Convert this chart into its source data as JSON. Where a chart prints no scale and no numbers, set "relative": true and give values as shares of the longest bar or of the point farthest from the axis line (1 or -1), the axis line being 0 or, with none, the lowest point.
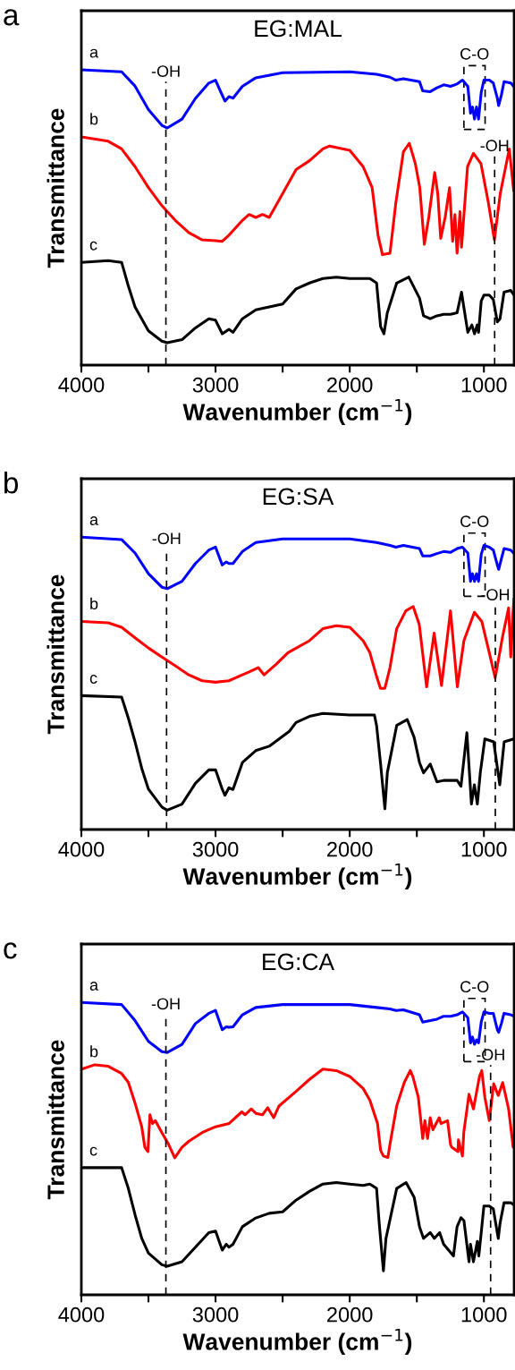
{
  "chart_data": [
    {
      "type": "line",
      "title": "EG:MAL",
      "xlabel": "Wavenumber (cm$^{−1}$)",
      "ylabel": "Transmittance",
      "relative": true,
      "tick_labels": "x",
      "legend": false,
      "grid": false,
      "xlim": [
        4000,
        775
      ],
      "xticks": [
        4000,
        {
          "value": 3500,
          "label": null
        },
        3000,
        {
          "value": 2500,
          "label": null
        },
        2000,
        {
          "value": 1500,
          "label": null
        },
        1000
      ],
      "annotations": [
        "a",
        "C-O"
      ],
      "ref_lines": [
        {
          "axis": "x",
          "value": 3370,
          "label": "-OH",
          "color": "#000000",
          "line_style": "dashed"
        },
        {
          "axis": "x",
          "value": 920,
          "label": "-OH",
          "color": "#000000",
          "line_style": "dashed"
        }
      ],
      "series": [
        {
          "name": "a",
          "color": "#0000ff",
          "x": [
            4000,
            3700,
            3600,
            3500,
            3400,
            3360,
            3250,
            3150,
            3050,
            3000,
            2960,
            2930,
            2900,
            2870,
            2800,
            2700,
            2500,
            2000,
            1800,
            1700,
            1656,
            1600,
            1480,
            1456,
            1400,
            1350,
            1300,
            1250,
            1200,
            1160,
            1120,
            1100,
            1085,
            1070,
            1055,
            1040,
            1020,
            1000,
            960,
            930,
            900,
            890,
            870,
            850,
            800,
            775
          ],
          "values": [
            1.0,
            0.993,
            0.945,
            0.865,
            0.812,
            0.803,
            0.833,
            0.903,
            0.955,
            0.965,
            0.924,
            0.894,
            0.909,
            0.904,
            0.944,
            0.973,
            0.99,
            0.993,
            0.985,
            0.975,
            0.965,
            0.97,
            0.96,
            0.929,
            0.926,
            0.939,
            0.949,
            0.944,
            0.952,
            0.965,
            0.944,
            0.853,
            0.874,
            0.833,
            0.874,
            0.833,
            0.924,
            0.965,
            0.965,
            0.955,
            0.904,
            0.879,
            0.914,
            0.96,
            0.955,
            0.942
          ]
        },
        {
          "name": "b",
          "color": "#ff0000",
          "x": [
            4000,
            3800,
            3700,
            3600,
            3500,
            3400,
            3300,
            3200,
            3100,
            3000,
            2950,
            2900,
            2800,
            2750,
            2700,
            2650,
            2600,
            2550,
            2400,
            2300,
            2200,
            2150,
            2000,
            1900,
            1833,
            1789,
            1756,
            1700,
            1656,
            1600,
            1556,
            1511,
            1478,
            1444,
            1411,
            1367,
            1344,
            1322,
            1289,
            1256,
            1233,
            1216,
            1200,
            1178,
            1167,
            1122,
            1078,
            1022,
            967,
            922,
            878,
            811,
            778
          ],
          "values": [
            0.773,
            0.758,
            0.732,
            0.672,
            0.601,
            0.54,
            0.49,
            0.449,
            0.424,
            0.421,
            0.419,
            0.44,
            0.49,
            0.51,
            0.5,
            0.51,
            0.5,
            0.54,
            0.662,
            0.692,
            0.732,
            0.742,
            0.727,
            0.672,
            0.601,
            0.439,
            0.374,
            0.379,
            0.551,
            0.722,
            0.751,
            0.682,
            0.601,
            0.409,
            0.5,
            0.652,
            0.581,
            0.429,
            0.5,
            0.601,
            0.419,
            0.51,
            0.379,
            0.52,
            0.399,
            0.672,
            0.717,
            0.682,
            0.551,
            0.424,
            0.581,
            0.732,
            0.591
          ]
        },
        {
          "name": "c",
          "color": "#000000",
          "x": [
            4000,
            3800,
            3700,
            3650,
            3600,
            3500,
            3400,
            3360,
            3250,
            3150,
            3050,
            3000,
            2950,
            2900,
            2870,
            2800,
            2700,
            2600,
            2500,
            2400,
            2300,
            2200,
            2100,
            2000,
            1850,
            1800,
            1770,
            1745,
            1720,
            1650,
            1560,
            1480,
            1450,
            1400,
            1350,
            1300,
            1250,
            1200,
            1167,
            1150,
            1120,
            1090,
            1070,
            1050,
            1040,
            1020,
            1000,
            960,
            930,
            900,
            880,
            850,
            800,
            775
          ],
          "values": [
            0.348,
            0.354,
            0.348,
            0.268,
            0.197,
            0.116,
            0.081,
            0.076,
            0.086,
            0.126,
            0.157,
            0.152,
            0.106,
            0.121,
            0.111,
            0.157,
            0.187,
            0.197,
            0.207,
            0.258,
            0.278,
            0.293,
            0.298,
            0.293,
            0.293,
            0.278,
            0.131,
            0.106,
            0.177,
            0.278,
            0.298,
            0.227,
            0.167,
            0.157,
            0.167,
            0.172,
            0.172,
            0.177,
            0.247,
            0.197,
            0.111,
            0.136,
            0.106,
            0.136,
            0.111,
            0.217,
            0.237,
            0.237,
            0.222,
            0.146,
            0.157,
            0.247,
            0.253,
            0.237
          ]
        }
      ]
    },
    {
      "type": "line",
      "title": "EG:SA",
      "xlabel": "Wavenumber (cm$^{−1}$)",
      "ylabel": "Transmittance",
      "relative": true,
      "tick_labels": "x",
      "legend": false,
      "grid": false,
      "xlim": [
        4000,
        775
      ],
      "xticks": [
        4000,
        {
          "value": 3500,
          "label": null
        },
        3000,
        {
          "value": 2500,
          "label": null
        },
        2000,
        {
          "value": 1500,
          "label": null
        },
        1000
      ],
      "annotations": [
        "b",
        "C-O"
      ],
      "ref_lines": [
        {
          "axis": "x",
          "value": 3365,
          "label": "-OH",
          "color": "#000000",
          "line_style": "dashed"
        },
        {
          "axis": "x",
          "value": 915,
          "label": "-OH",
          "color": "#000000",
          "line_style": "dashed"
        }
      ],
      "series": [
        {
          "name": "a",
          "color": "#0000ff",
          "x": [
            4000,
            3700,
            3600,
            3500,
            3400,
            3360,
            3250,
            3150,
            3050,
            3000,
            2950,
            2920,
            2900,
            2870,
            2800,
            2700,
            2500,
            2000,
            1800,
            1700,
            1656,
            1600,
            1480,
            1456,
            1400,
            1350,
            1300,
            1250,
            1200,
            1160,
            1120,
            1100,
            1085,
            1070,
            1055,
            1040,
            1020,
            1000,
            960,
            930,
            900,
            890,
            870,
            850,
            800,
            775
          ],
          "values": [
            1.0,
            0.992,
            0.946,
            0.875,
            0.829,
            0.824,
            0.849,
            0.91,
            0.956,
            0.966,
            0.905,
            0.915,
            0.91,
            0.91,
            0.951,
            0.982,
            0.994,
            0.994,
            0.982,
            0.972,
            0.966,
            0.972,
            0.961,
            0.936,
            0.936,
            0.944,
            0.951,
            0.948,
            0.961,
            0.966,
            0.946,
            0.849,
            0.875,
            0.849,
            0.875,
            0.849,
            0.941,
            0.972,
            0.966,
            0.956,
            0.905,
            0.89,
            0.926,
            0.961,
            0.956,
            0.944
          ]
        },
        {
          "name": "b",
          "color": "#ff0000",
          "x": [
            4000,
            3800,
            3700,
            3600,
            3500,
            3400,
            3300,
            3200,
            3100,
            3000,
            2900,
            2850,
            2750,
            2682,
            2638,
            2549,
            2460,
            2300,
            2200,
            2100,
            2000,
            1900,
            1850,
            1800,
            1771,
            1738,
            1700,
            1650,
            1582,
            1527,
            1482,
            1427,
            1371,
            1316,
            1249,
            1198,
            1149,
            1071,
            1016,
            960,
            916,
            860,
            816,
            800,
            785,
            776
          ],
          "values": [
            0.712,
            0.707,
            0.692,
            0.656,
            0.621,
            0.59,
            0.56,
            0.529,
            0.509,
            0.504,
            0.509,
            0.519,
            0.539,
            0.554,
            0.529,
            0.565,
            0.605,
            0.646,
            0.687,
            0.697,
            0.692,
            0.646,
            0.605,
            0.524,
            0.483,
            0.483,
            0.554,
            0.687,
            0.748,
            0.763,
            0.702,
            0.488,
            0.672,
            0.493,
            0.748,
            0.488,
            0.646,
            0.743,
            0.712,
            0.605,
            0.519,
            0.662,
            0.758,
            0.59,
            0.728,
            0.788
          ]
        },
        {
          "name": "c",
          "color": "#000000",
          "x": [
            4000,
            3700,
            3650,
            3600,
            3550,
            3500,
            3400,
            3360,
            3250,
            3150,
            3050,
            3000,
            2950,
            2930,
            2900,
            2870,
            2800,
            2700,
            2600,
            2450,
            2400,
            2300,
            2200,
            2000,
            1816,
            1800,
            1771,
            1738,
            1720,
            1650,
            1571,
            1520,
            1480,
            1450,
            1400,
            1350,
            1300,
            1200,
            1171,
            1127,
            1093,
            1071,
            1049,
            1027,
            993,
            927,
            882,
            849,
            776
          ],
          "values": [
            0.458,
            0.453,
            0.381,
            0.3,
            0.209,
            0.138,
            0.077,
            0.066,
            0.087,
            0.158,
            0.204,
            0.204,
            0.138,
            0.117,
            0.143,
            0.137,
            0.229,
            0.27,
            0.285,
            0.336,
            0.366,
            0.387,
            0.397,
            0.392,
            0.392,
            0.356,
            0.229,
            0.071,
            0.194,
            0.356,
            0.376,
            0.315,
            0.229,
            0.194,
            0.224,
            0.163,
            0.168,
            0.168,
            0.148,
            0.331,
            0.087,
            0.153,
            0.087,
            0.194,
            0.31,
            0.3,
            0.153,
            0.3,
            0.31
          ]
        }
      ]
    },
    {
      "type": "line",
      "title": "EG:CA",
      "xlabel": "Wavenumber (cm$^{−1}$)",
      "ylabel": "Transmittance",
      "relative": true,
      "tick_labels": "x",
      "legend": false,
      "grid": false,
      "xlim": [
        4000,
        775
      ],
      "xticks": [
        4000,
        {
          "value": 3500,
          "label": null
        },
        3000,
        {
          "value": 2500,
          "label": null
        },
        2000,
        {
          "value": 1500,
          "label": null
        },
        1000
      ],
      "annotations": [
        "c",
        "C-O"
      ],
      "ref_lines": [
        {
          "axis": "x",
          "value": 3370,
          "label": "-OH",
          "color": "#000000",
          "line_style": "dashed"
        },
        {
          "axis": "x",
          "value": 950,
          "label": "-OH",
          "color": "#000000",
          "line_style": "dashed"
        }
      ],
      "series": [
        {
          "name": "a",
          "color": "#0000ff",
          "x": [
            4000,
            3700,
            3600,
            3500,
            3400,
            3360,
            3250,
            3150,
            3050,
            3000,
            2950,
            2920,
            2900,
            2870,
            2800,
            2700,
            2500,
            2000,
            1800,
            1700,
            1656,
            1600,
            1480,
            1456,
            1400,
            1350,
            1300,
            1250,
            1200,
            1160,
            1120,
            1100,
            1085,
            1070,
            1055,
            1040,
            1020,
            1000,
            960,
            930,
            900,
            890,
            870,
            850,
            800,
            775
          ],
          "values": [
            1.0,
            0.993,
            0.938,
            0.867,
            0.832,
            0.829,
            0.857,
            0.928,
            0.963,
            0.973,
            0.907,
            0.917,
            0.915,
            0.917,
            0.958,
            0.983,
            0.993,
            0.993,
            0.983,
            0.978,
            0.973,
            0.975,
            0.958,
            0.933,
            0.938,
            0.943,
            0.953,
            0.953,
            0.958,
            0.968,
            0.948,
            0.862,
            0.882,
            0.857,
            0.872,
            0.862,
            0.933,
            0.968,
            0.963,
            0.963,
            0.907,
            0.898,
            0.928,
            0.963,
            0.958,
            0.953
          ]
        },
        {
          "name": "b",
          "color": "#ff0000",
          "x": [
            4000,
            3900,
            3800,
            3700,
            3650,
            3600,
            3550,
            3527,
            3504,
            3489,
            3470,
            3449,
            3400,
            3350,
            3304,
            3250,
            3200,
            3100,
            3000,
            2900,
            2804,
            2780,
            2733,
            2700,
            2650,
            2611,
            2567,
            2527,
            2400,
            2300,
            2200,
            2100,
            2000,
            1900,
            1850,
            1793,
            1770,
            1749,
            1716,
            1700,
            1650,
            1593,
            1549,
            1530,
            1489,
            1456,
            1440,
            1420,
            1400,
            1380,
            1333,
            1320,
            1271,
            1249,
            1240,
            1193,
            1190,
            1160,
            1150,
            1111,
            1078,
            1033,
            1016,
            993,
            960,
            927,
            893,
            860,
            816,
            782,
            775
          ],
          "values": [
            0.772,
            0.787,
            0.782,
            0.757,
            0.727,
            0.656,
            0.575,
            0.505,
            0.49,
            0.616,
            0.586,
            0.596,
            0.555,
            0.515,
            0.469,
            0.505,
            0.525,
            0.555,
            0.575,
            0.586,
            0.626,
            0.616,
            0.636,
            0.621,
            0.616,
            0.64,
            0.606,
            0.646,
            0.696,
            0.737,
            0.772,
            0.767,
            0.747,
            0.706,
            0.666,
            0.586,
            0.495,
            0.475,
            0.47,
            0.515,
            0.646,
            0.727,
            0.767,
            0.747,
            0.676,
            0.535,
            0.596,
            0.535,
            0.606,
            0.565,
            0.606,
            0.586,
            0.596,
            0.515,
            0.505,
            0.49,
            0.53,
            0.475,
            0.556,
            0.686,
            0.636,
            0.747,
            0.767,
            0.676,
            0.596,
            0.722,
            0.682,
            0.726,
            0.636,
            0.505,
            0.505
          ]
        },
        {
          "name": "c",
          "color": "#000000",
          "x": [
            4000,
            3700,
            3650,
            3600,
            3550,
            3500,
            3400,
            3360,
            3250,
            3150,
            3050,
            3000,
            2950,
            2920,
            2900,
            2870,
            2800,
            2700,
            2600,
            2500,
            2400,
            2300,
            2200,
            2100,
            2000,
            1900,
            1850,
            1800,
            1780,
            1749,
            1730,
            1650,
            1580,
            1520,
            1480,
            1450,
            1400,
            1370,
            1330,
            1300,
            1227,
            1200,
            1171,
            1149,
            1111,
            1100,
            1078,
            1049,
            1038,
            1020,
            1000,
            960,
            930,
            893,
            880,
            850,
            800,
            775
          ],
          "values": [
            0.435,
            0.435,
            0.364,
            0.274,
            0.193,
            0.143,
            0.103,
            0.098,
            0.113,
            0.163,
            0.213,
            0.218,
            0.153,
            0.173,
            0.163,
            0.173,
            0.233,
            0.263,
            0.279,
            0.284,
            0.324,
            0.354,
            0.379,
            0.384,
            0.379,
            0.374,
            0.379,
            0.364,
            0.243,
            0.082,
            0.193,
            0.364,
            0.384,
            0.334,
            0.233,
            0.193,
            0.213,
            0.193,
            0.213,
            0.173,
            0.133,
            0.233,
            0.264,
            0.254,
            0.113,
            0.173,
            0.113,
            0.183,
            0.133,
            0.213,
            0.304,
            0.304,
            0.294,
            0.193,
            0.244,
            0.315,
            0.315,
            0.307
          ]
        }
      ]
    }
  ]
}
